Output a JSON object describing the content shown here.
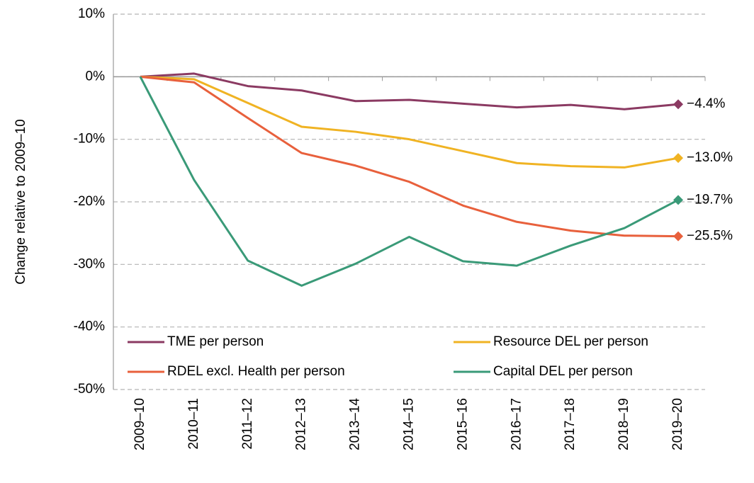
{
  "chart_data": {
    "type": "line",
    "y_label": "Change relative to 2009–10",
    "categories": [
      "2009–10",
      "2010–11",
      "2011–12",
      "2012–13",
      "2013–14",
      "2014–15",
      "2015–16",
      "2016–17",
      "2017–18",
      "2018–19",
      "2019–20"
    ],
    "series": [
      {
        "name": "TME per person",
        "color": "#8b3a62",
        "values": [
          0,
          0.5,
          -1.5,
          -2.2,
          -3.9,
          -3.7,
          -4.3,
          -4.9,
          -4.5,
          -5.2,
          -4.4
        ],
        "value_labels": [
          null,
          null,
          null,
          null,
          null,
          null,
          null,
          null,
          null,
          null,
          "−4.4%"
        ]
      },
      {
        "name": "Resource DEL per person",
        "color": "#f0b323",
        "values": [
          0,
          -0.4,
          -4.2,
          -8.0,
          -8.8,
          -10.0,
          -11.9,
          -13.8,
          -14.3,
          -14.5,
          -13.0
        ],
        "value_labels": [
          null,
          null,
          null,
          null,
          null,
          null,
          null,
          null,
          null,
          null,
          "−13.0%"
        ]
      },
      {
        "name": "RDEL excl. Health per person",
        "color": "#e8603c",
        "values": [
          0,
          -0.9,
          -6.6,
          -12.2,
          -14.2,
          -16.8,
          -20.6,
          -23.2,
          -24.6,
          -25.4,
          -25.5
        ],
        "value_labels": [
          null,
          null,
          null,
          null,
          null,
          null,
          null,
          null,
          null,
          null,
          "−25.5%"
        ]
      },
      {
        "name": "Capital DEL per person",
        "color": "#3a9a78",
        "values": [
          0,
          -16.5,
          -29.4,
          -33.4,
          -29.9,
          -25.6,
          -29.5,
          -30.2,
          -27.0,
          -24.2,
          -19.7
        ],
        "value_labels": [
          null,
          null,
          null,
          null,
          null,
          null,
          null,
          null,
          null,
          null,
          "−19.7%"
        ]
      }
    ],
    "ylim": [
      -50,
      10
    ],
    "yticks": [
      {
        "value": -50,
        "label": "-50%"
      },
      {
        "value": -40,
        "label": "-40%"
      },
      {
        "value": -30,
        "label": "-30%"
      },
      {
        "value": -20,
        "label": "-20%"
      },
      {
        "value": -10,
        "label": "-10%"
      },
      {
        "value": 0,
        "label": "0%"
      },
      {
        "value": 10,
        "label": "10%"
      }
    ],
    "grid": true,
    "legend": "bottom"
  }
}
